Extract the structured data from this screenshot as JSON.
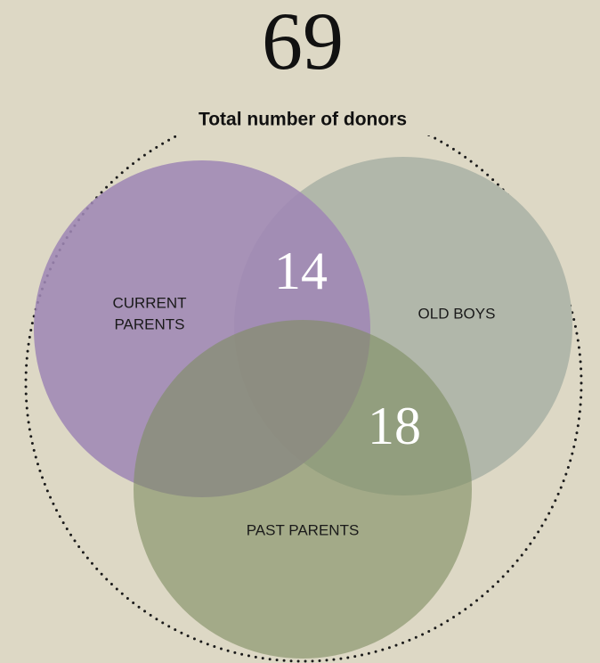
{
  "total": {
    "value": 69,
    "label": "Total number of donors"
  },
  "sets": [
    {
      "label": [
        "CURRENT",
        "PARENTS"
      ]
    },
    {
      "label": "OLD BOYS"
    },
    {
      "label": "PAST PARENTS"
    }
  ],
  "intersections": [
    {
      "value": 14
    },
    {
      "value": 18
    }
  ]
}
